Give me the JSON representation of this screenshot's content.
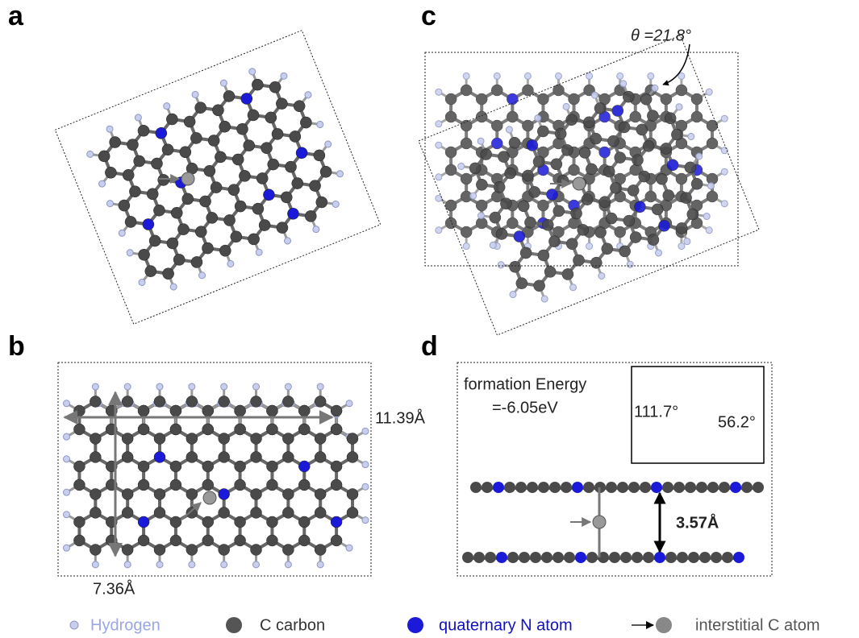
{
  "panels": [
    {
      "label": "a"
    },
    {
      "label": "b",
      "annotations": [
        "11.39Å",
        "7.36Å"
      ]
    },
    {
      "label": "c",
      "annotations": [
        "θ =21.8°"
      ]
    },
    {
      "label": "d",
      "annotations": [
        "formation Energy",
        "=-6.05eV",
        "111.7°",
        "56.2°",
        "3.57Å"
      ]
    }
  ],
  "legend": [
    "Hydrogen",
    "C carbon",
    "quaternary N atom",
    "interstitial C atom"
  ]
}
